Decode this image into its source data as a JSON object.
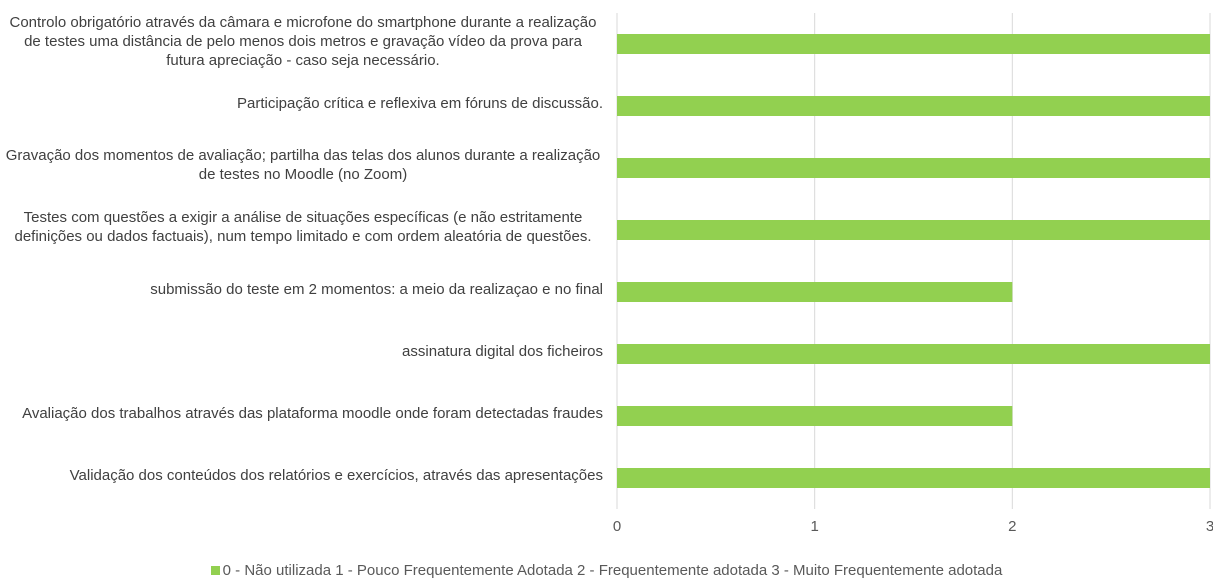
{
  "chart_data": {
    "type": "barh",
    "categories": [
      "Controlo obrigatório através da câmara e microfone do smartphone durante a realização de testes uma distância de pelo menos dois metros e gravação vídeo da prova para futura apreciação - caso seja necessário.",
      "Participação crítica e reflexiva em fóruns de discussão.",
      "Gravação dos momentos de avaliação; partilha das telas dos alunos durante a realização de testes no Moodle (no Zoom)",
      "Testes com questões a exigir a análise de situações específicas (e não estritamente definições ou dados factuais), num tempo limitado e com ordem aleatória de questões.",
      "submissão do teste em 2 momentos: a meio da realizaçao e no final",
      "assinatura digital dos ficheiros",
      "Avaliação dos trabalhos através das plataforma moodle onde foram detectadas fraudes",
      "Validação dos conteúdos dos relatórios e exercícios, através das apresentações"
    ],
    "series": [
      {
        "name": "0 - Não utilizada 1 - Pouco Frequentemente Adotada 2 - Frequentemente adotada 3 - Muito Frequentemente adotada",
        "color": "#92d050",
        "values": [
          3,
          3,
          3,
          3,
          2,
          3,
          2,
          3
        ]
      }
    ],
    "xlim": [
      0,
      3
    ],
    "xticks": [
      0,
      1,
      2,
      3
    ],
    "grid": true,
    "legend": "bottom"
  }
}
